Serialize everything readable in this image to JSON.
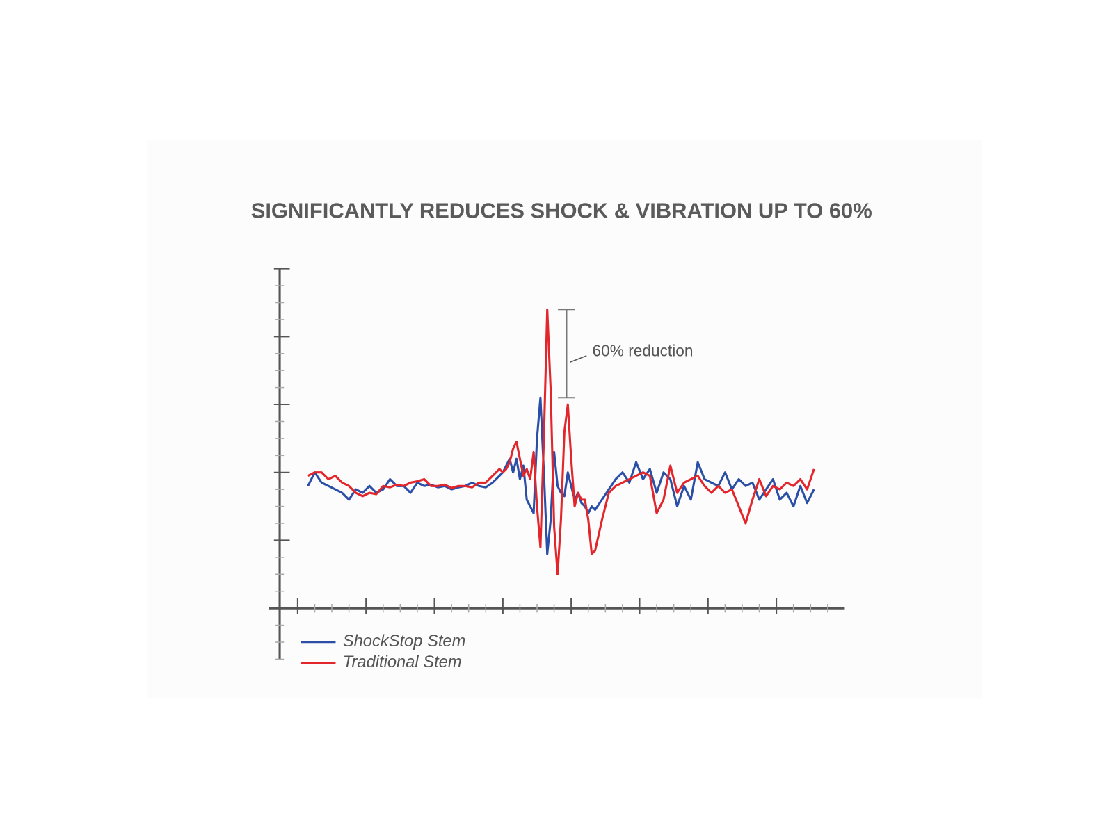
{
  "chart_data": {
    "type": "line",
    "title": "SIGNIFICANTLY REDUCES SHOCK & VIBRATION UP TO 60%",
    "annotation": "60% reduction",
    "xlim": [
      -0.42,
      8
    ],
    "ylim": [
      -0.75,
      5
    ],
    "xticks": [
      0,
      0.25,
      0.5,
      0.75,
      1,
      1.25,
      1.5,
      1.75,
      2,
      2.25,
      2.5,
      2.75,
      3,
      3.25,
      3.5,
      3.75,
      4,
      4.25,
      4.5,
      4.75,
      5,
      5.25,
      5.5,
      5.75,
      6,
      6.25,
      6.5,
      6.75,
      7,
      7.25,
      7.5,
      7.75
    ],
    "yticks": [
      -0.75,
      -0.5,
      -0.25,
      0,
      0.25,
      0.5,
      0.75,
      1,
      1.25,
      1.5,
      1.75,
      2,
      2.25,
      2.5,
      2.75,
      3,
      3.25,
      3.5,
      3.75,
      4,
      4.25,
      4.5,
      4.75,
      5
    ],
    "x": [
      0.15,
      0.25,
      0.35,
      0.45,
      0.55,
      0.65,
      0.75,
      0.85,
      0.95,
      1.05,
      1.15,
      1.25,
      1.35,
      1.45,
      1.55,
      1.65,
      1.75,
      1.85,
      1.95,
      2.05,
      2.15,
      2.25,
      2.35,
      2.45,
      2.55,
      2.65,
      2.75,
      2.85,
      2.95,
      3.0,
      3.05,
      3.1,
      3.15,
      3.2,
      3.25,
      3.3,
      3.35,
      3.4,
      3.45,
      3.5,
      3.55,
      3.6,
      3.65,
      3.7,
      3.75,
      3.8,
      3.85,
      3.9,
      3.95,
      4.0,
      4.05,
      4.1,
      4.15,
      4.2,
      4.25,
      4.3,
      4.35,
      4.45,
      4.55,
      4.65,
      4.75,
      4.85,
      4.95,
      5.05,
      5.15,
      5.25,
      5.35,
      5.45,
      5.55,
      5.65,
      5.75,
      5.85,
      5.95,
      6.05,
      6.15,
      6.25,
      6.35,
      6.45,
      6.55,
      6.65,
      6.75,
      6.85,
      6.95,
      7.05,
      7.15,
      7.25,
      7.35,
      7.45,
      7.55
    ],
    "series": [
      {
        "name": "ShockStop Stem",
        "color": "#2b4fa6",
        "values": [
          1.8,
          2.0,
          1.85,
          1.8,
          1.75,
          1.7,
          1.6,
          1.75,
          1.7,
          1.8,
          1.7,
          1.75,
          1.9,
          1.8,
          1.8,
          1.7,
          1.85,
          1.8,
          1.82,
          1.78,
          1.8,
          1.75,
          1.78,
          1.8,
          1.85,
          1.8,
          1.78,
          1.85,
          1.95,
          2.0,
          2.1,
          2.2,
          2.0,
          2.2,
          1.9,
          2.1,
          1.6,
          1.5,
          1.4,
          2.5,
          3.1,
          2.0,
          0.8,
          1.3,
          2.3,
          1.8,
          1.7,
          1.65,
          2.0,
          1.8,
          1.6,
          1.7,
          1.55,
          1.5,
          1.4,
          1.5,
          1.45,
          1.6,
          1.75,
          1.9,
          2.0,
          1.85,
          2.15,
          1.9,
          2.05,
          1.7,
          2.0,
          1.9,
          1.5,
          1.8,
          1.6,
          2.15,
          1.9,
          1.85,
          1.8,
          2.0,
          1.75,
          1.9,
          1.8,
          1.85,
          1.6,
          1.75,
          1.9,
          1.6,
          1.7,
          1.5,
          1.8,
          1.55,
          1.75
        ]
      },
      {
        "name": "Traditional Stem",
        "color": "#e2262b",
        "values": [
          1.95,
          2.0,
          2.0,
          1.9,
          1.95,
          1.85,
          1.8,
          1.7,
          1.65,
          1.7,
          1.68,
          1.8,
          1.78,
          1.82,
          1.8,
          1.85,
          1.87,
          1.9,
          1.8,
          1.8,
          1.82,
          1.77,
          1.8,
          1.8,
          1.78,
          1.85,
          1.85,
          1.95,
          2.05,
          2.0,
          2.05,
          2.15,
          2.35,
          2.45,
          2.2,
          1.95,
          2.05,
          1.9,
          2.3,
          1.5,
          0.9,
          2.5,
          4.4,
          3.2,
          1.2,
          0.5,
          1.3,
          2.6,
          3.0,
          2.2,
          1.5,
          1.7,
          1.6,
          1.6,
          1.3,
          0.8,
          0.85,
          1.3,
          1.7,
          1.8,
          1.85,
          1.9,
          1.95,
          2.0,
          1.95,
          1.4,
          1.6,
          2.1,
          1.7,
          1.85,
          1.9,
          1.95,
          1.8,
          1.7,
          1.8,
          1.7,
          1.75,
          1.5,
          1.25,
          1.6,
          1.9,
          1.65,
          1.8,
          1.75,
          1.85,
          1.8,
          1.9,
          1.75,
          2.05
        ]
      }
    ]
  }
}
